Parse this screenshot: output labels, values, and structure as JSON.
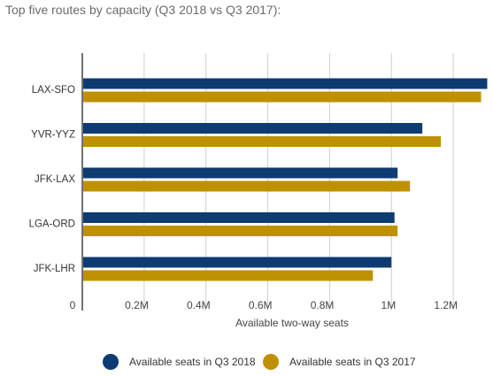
{
  "title": "Top five routes by capacity (Q3 2018 vs Q3 2017):",
  "colors": {
    "q2018": "#0d3b72",
    "q2017": "#bf9000",
    "grid": "#cfcfcf",
    "axis": "#444444"
  },
  "chart_data": {
    "type": "bar",
    "orientation": "horizontal",
    "categories": [
      "LAX-SFO",
      "YVR-YYZ",
      "JFK-LAX",
      "LGA-ORD",
      "JFK-LHR"
    ],
    "series": [
      {
        "name": "Available seats in Q3 2018",
        "values": [
          1310000,
          1100000,
          1020000,
          1010000,
          1000000
        ]
      },
      {
        "name": "Available seats in Q3 2017",
        "values": [
          1290000,
          1160000,
          1060000,
          1020000,
          940000
        ]
      }
    ],
    "xlabel": "Available two-way seats",
    "ylabel": "",
    "xlim": [
      0,
      1300000
    ],
    "xticks": [
      0,
      200000,
      400000,
      600000,
      800000,
      1000000,
      1200000
    ],
    "xtick_labels": [
      "0",
      "0.2M",
      "0.4M",
      "0.6M",
      "0.8M",
      "1M",
      "1.2M"
    ],
    "grid": true,
    "legend_position": "bottom"
  },
  "legend": [
    {
      "label": "Available seats in Q3 2018",
      "color": "#0d3b72"
    },
    {
      "label": "Available seats in Q3 2017",
      "color": "#bf9000"
    }
  ]
}
